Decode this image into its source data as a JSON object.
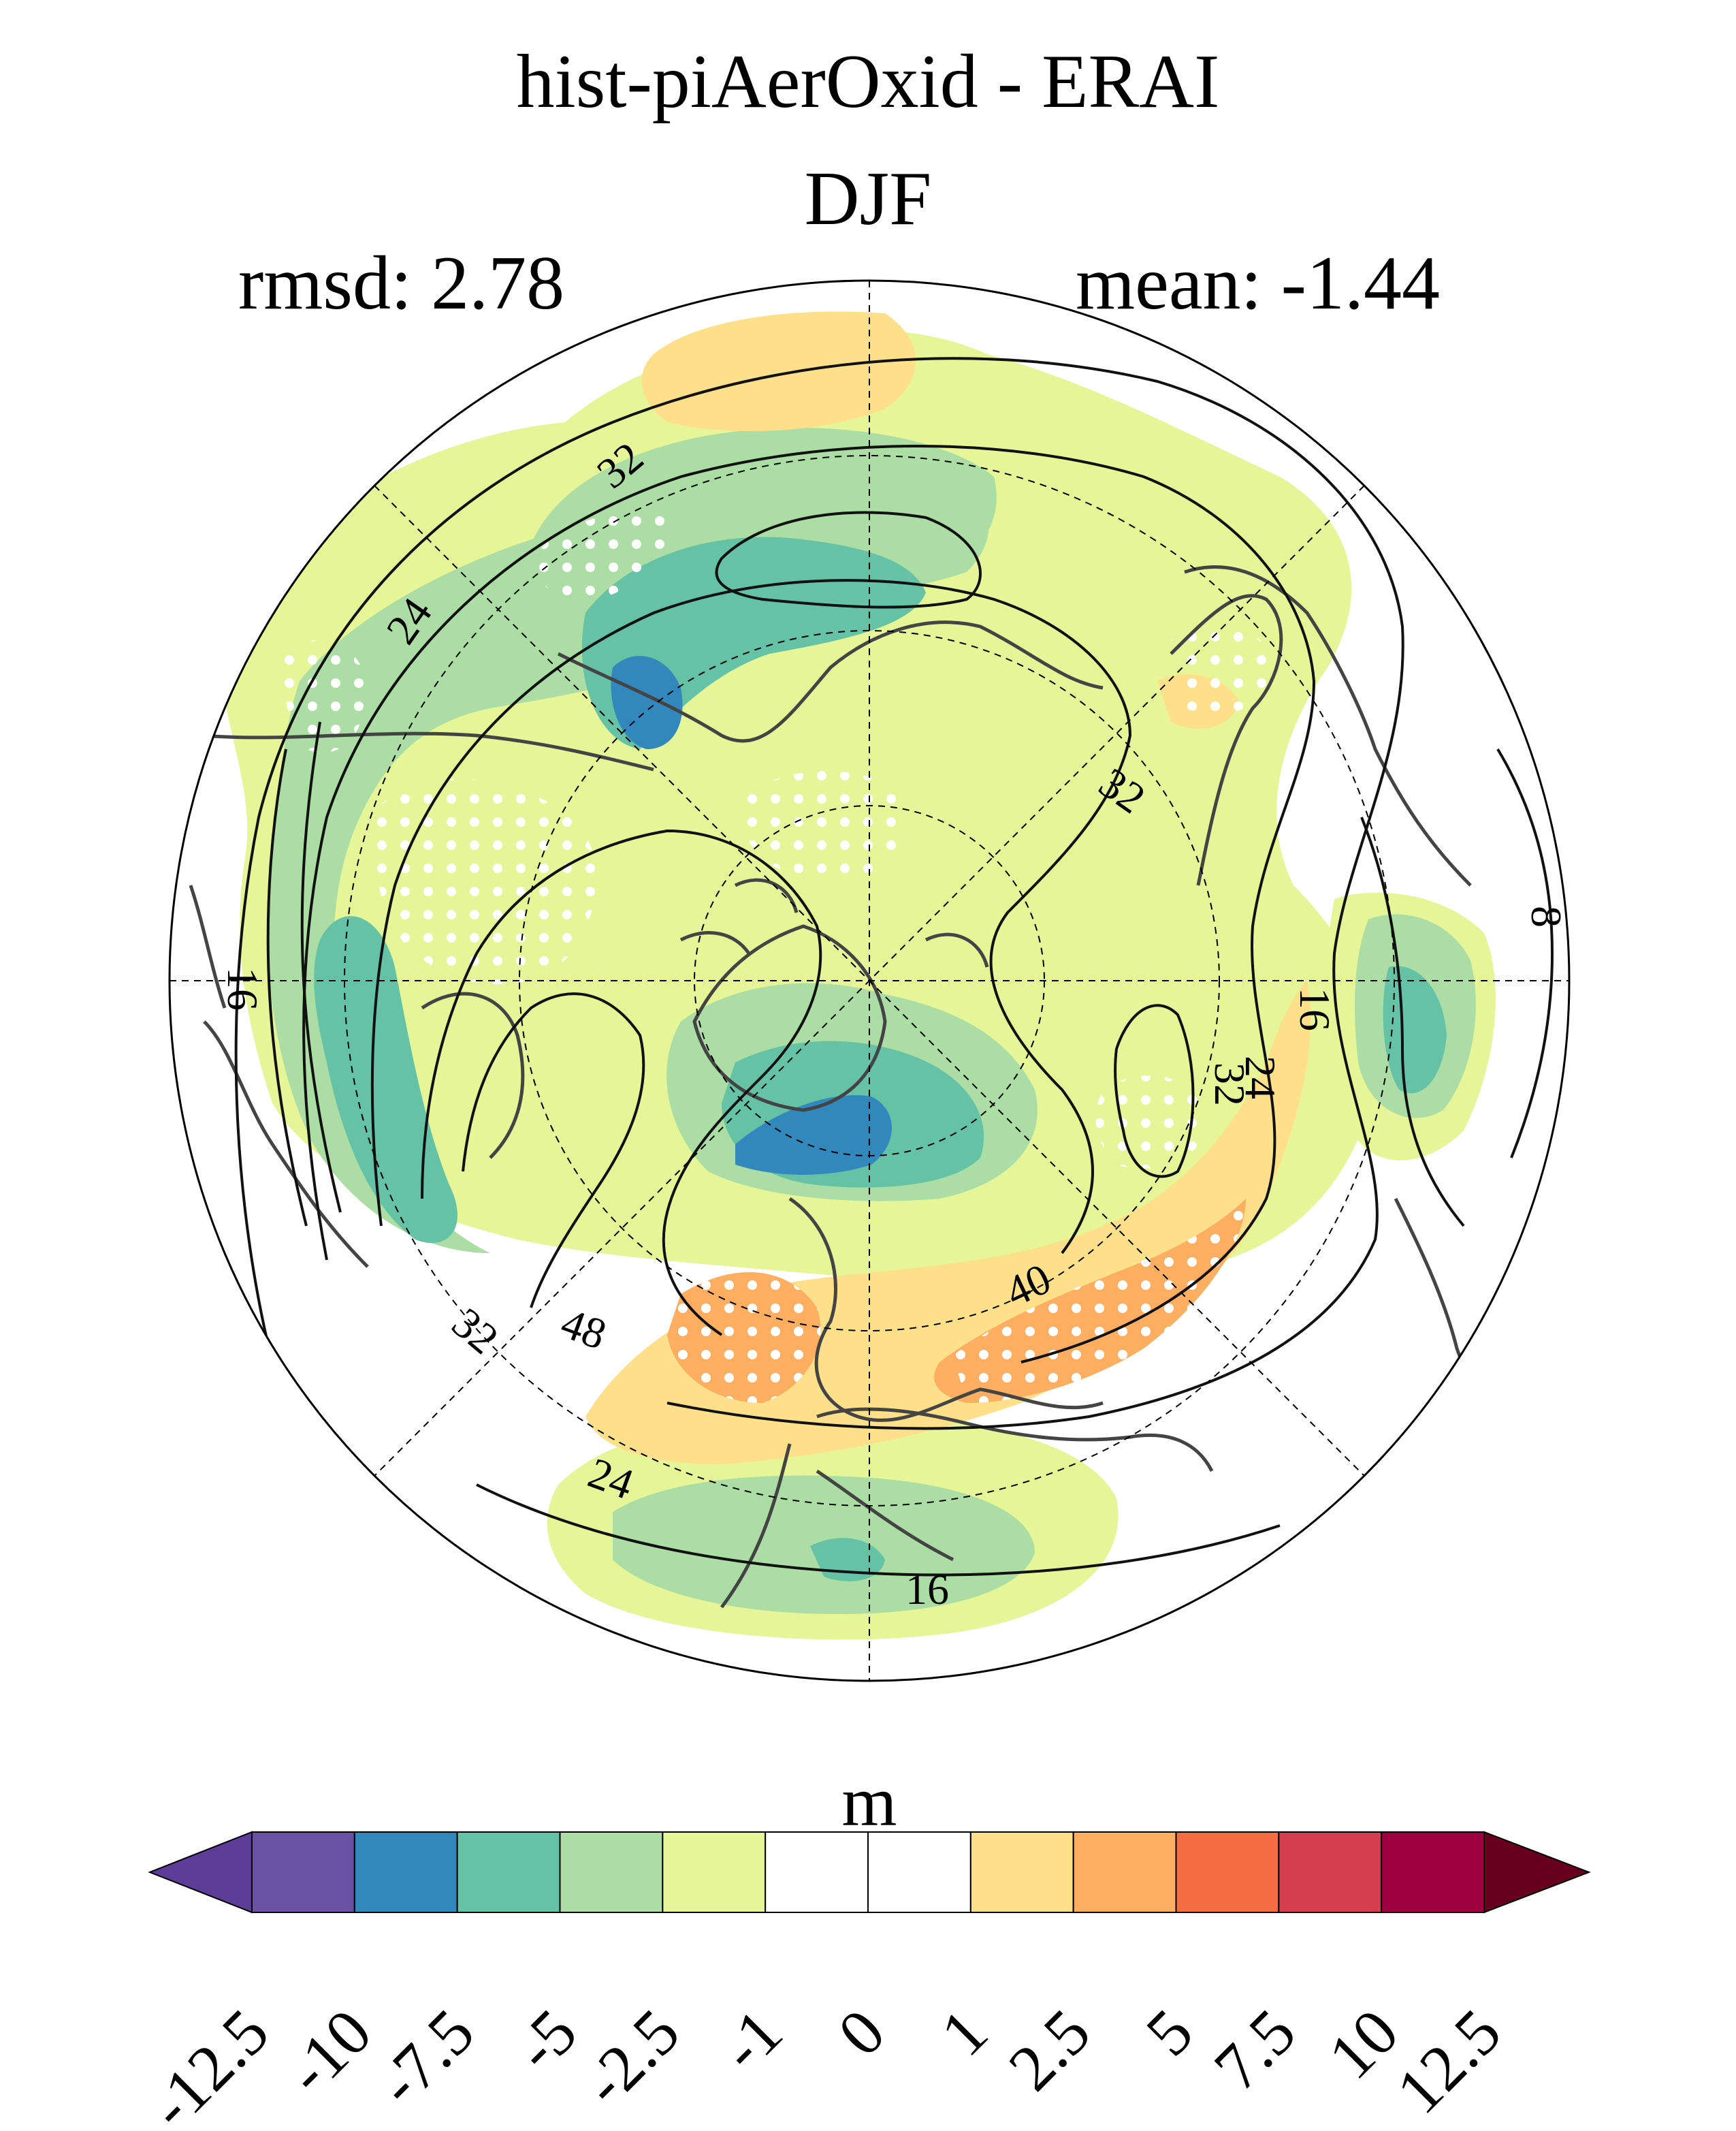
{
  "title": "hist-piAerOxid - ERAI",
  "season": "DJF",
  "stats": {
    "rmsd_label": "rmsd: 2.78",
    "mean_label": "mean: -1.44"
  },
  "colorbar": {
    "unit": "m",
    "levels": [
      "-12.5",
      "-10",
      "-7.5",
      "-5",
      "-2.5",
      "-1",
      "0",
      "1",
      "2.5",
      "5",
      "7.5",
      "10",
      "12.5"
    ],
    "colors": [
      "#5e3c99",
      "#6a51a3",
      "#3288bd",
      "#66c2a5",
      "#abdda4",
      "#e6f598",
      "#ffffff",
      "#ffffff",
      "#fee08b",
      "#fdae61",
      "#f46d43",
      "#d53e4f",
      "#9e0142",
      "#67001f"
    ],
    "under_color": "#5e3c99",
    "over_color": "#67001f"
  },
  "contour_labels": [
    "32",
    "24",
    "32",
    "16",
    "16",
    "32",
    "24",
    "48",
    "40",
    "32",
    "24",
    "16",
    "8"
  ],
  "legend_colors": {
    "coast": "#444444",
    "contour": "#111111",
    "grid": "#000000"
  }
}
